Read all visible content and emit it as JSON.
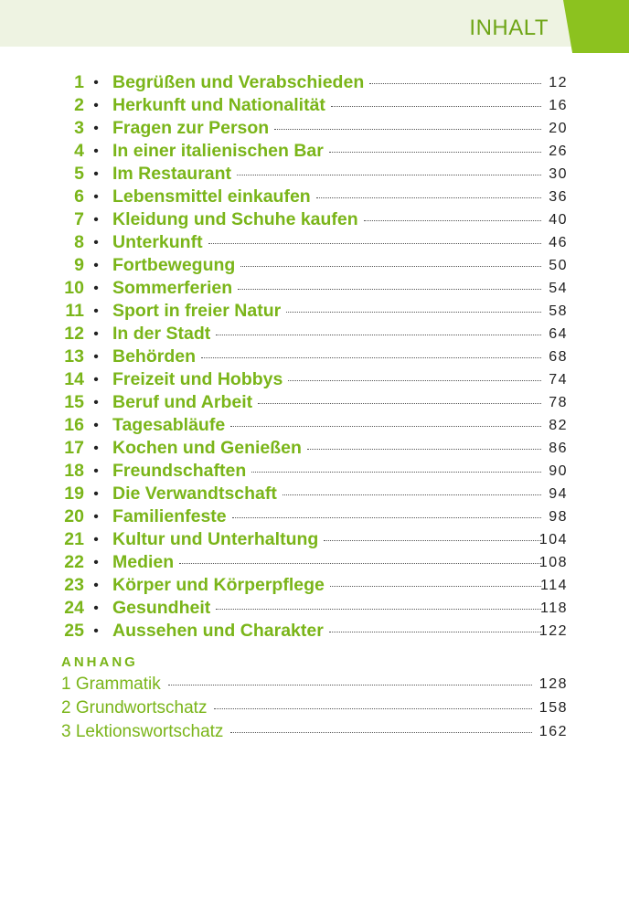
{
  "header": {
    "title": "INHALT"
  },
  "toc": [
    {
      "num": "1",
      "title": "Begrüßen und Verabschieden",
      "page": "12"
    },
    {
      "num": "2",
      "title": "Herkunft und Nationalität",
      "page": "16"
    },
    {
      "num": "3",
      "title": "Fragen zur Person",
      "page": "20"
    },
    {
      "num": "4",
      "title": "In einer italienischen Bar",
      "page": "26"
    },
    {
      "num": "5",
      "title": "Im Restaurant",
      "page": "30"
    },
    {
      "num": "6",
      "title": "Lebensmittel einkaufen",
      "page": "36"
    },
    {
      "num": "7",
      "title": "Kleidung und Schuhe kaufen",
      "page": "40"
    },
    {
      "num": "8",
      "title": "Unterkunft",
      "page": "46"
    },
    {
      "num": "9",
      "title": "Fortbewegung",
      "page": "50"
    },
    {
      "num": "10",
      "title": "Sommerferien",
      "page": "54"
    },
    {
      "num": "11",
      "title": "Sport in freier Natur",
      "page": "58"
    },
    {
      "num": "12",
      "title": "In der Stadt",
      "page": "64"
    },
    {
      "num": "13",
      "title": "Behörden",
      "page": "68"
    },
    {
      "num": "14",
      "title": "Freizeit und Hobbys",
      "page": "74"
    },
    {
      "num": "15",
      "title": "Beruf und Arbeit",
      "page": "78"
    },
    {
      "num": "16",
      "title": "Tagesabläufe",
      "page": "82"
    },
    {
      "num": "17",
      "title": "Kochen und Genießen",
      "page": "86"
    },
    {
      "num": "18",
      "title": "Freundschaften",
      "page": "90"
    },
    {
      "num": "19",
      "title": "Die Verwandtschaft",
      "page": "94"
    },
    {
      "num": "20",
      "title": "Familienfeste",
      "page": "98"
    },
    {
      "num": "21",
      "title": "Kultur und Unterhaltung",
      "page": "104"
    },
    {
      "num": "22",
      "title": "Medien",
      "page": "108"
    },
    {
      "num": "23",
      "title": "Körper und Körperpflege",
      "page": "114"
    },
    {
      "num": "24",
      "title": "Gesundheit",
      "page": "118"
    },
    {
      "num": "25",
      "title": "Aussehen und Charakter",
      "page": "122"
    }
  ],
  "appendix": {
    "heading": "ANHANG",
    "items": [
      {
        "title": "1 Grammatik",
        "page": "128"
      },
      {
        "title": "2 Grundwortschatz",
        "page": "158"
      },
      {
        "title": "3 Lektionswortschatz",
        "page": "162"
      }
    ]
  },
  "colors": {
    "accent": "#8cc21f",
    "text_green": "#7ab519",
    "band": "#eef3e2"
  }
}
